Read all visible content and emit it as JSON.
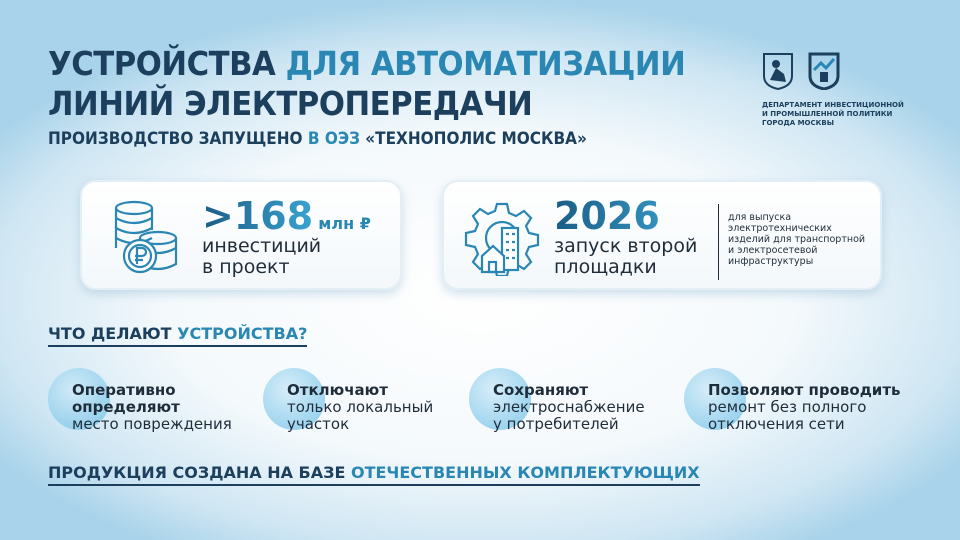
{
  "title": {
    "line1_part1": "УСТРОЙСТВА ",
    "line1_part2": "ДЛЯ АВТОМАТИЗАЦИИ",
    "line2": "ЛИНИЙ ЭЛЕКТРОПЕРЕДАЧИ",
    "subtitle_part1": "ПРОИЗВОДСТВО ЗАПУЩЕНО ",
    "subtitle_part2": "В ОЭЗ ",
    "subtitle_part3": "«ТЕХНОПОЛИС МОСКВА»"
  },
  "logo": {
    "org": [
      "ДЕПАРТАМЕНТ ИНВЕСТИЦИОННОЙ",
      "И ПРОМЫШЛЕННОЙ ПОЛИТИКИ",
      "ГОРОДА МОСКВЫ"
    ]
  },
  "cards": [
    {
      "value": ">168",
      "unit": "млн ₽",
      "label": [
        "инвестиций",
        "в проект"
      ],
      "icon": "coins-ruble-icon"
    },
    {
      "value": "2026",
      "label": [
        "запуск второй",
        "площадки"
      ],
      "note": [
        "для выпуска",
        "электротехнических",
        "изделий для транспортной",
        "и электросетевой",
        "инфраструктуры"
      ],
      "icon": "gear-building-icon"
    }
  ],
  "section1": {
    "part1": "ЧТО ДЕЛАЮТ ",
    "part2": "УСТРОЙСТВА?"
  },
  "features": [
    {
      "bold": [
        "Оперативно",
        "определяют"
      ],
      "text": [
        "место повреждения"
      ]
    },
    {
      "bold": [
        "Отключают"
      ],
      "text": [
        "только локальный",
        "участок"
      ]
    },
    {
      "bold": [
        "Сохраняют"
      ],
      "text": [
        "электроснабжение",
        "у потребителей"
      ]
    },
    {
      "bold": [
        "Позволяют проводить"
      ],
      "text": [
        "ремонт без полного",
        "отключения сети"
      ]
    }
  ],
  "section2": {
    "part1": "ПРОДУКЦИЯ СОЗДАНА НА БАЗЕ ",
    "part2": "ОТЕЧЕСТВЕННЫХ КОМПЛЕКТУЮЩИХ"
  },
  "colors": {
    "dark": "#1b3f5c",
    "accent": "#2a86b3"
  }
}
